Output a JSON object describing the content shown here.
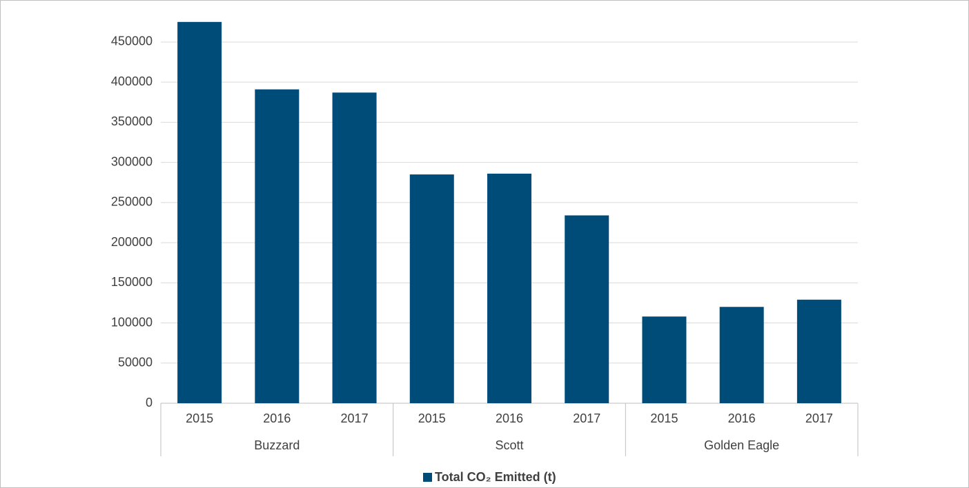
{
  "chart_data": {
    "type": "bar",
    "categories": [
      "2015",
      "2016",
      "2017",
      "2015",
      "2016",
      "2017",
      "2015",
      "2016",
      "2017"
    ],
    "groups": [
      "Buzzard",
      "Scott",
      "Golden Eagle"
    ],
    "series": [
      {
        "name": "Total CO₂ Emitted (t)",
        "color": "#004c79",
        "values": [
          475000,
          391000,
          387000,
          285000,
          286000,
          234000,
          108000,
          120000,
          129000
        ]
      }
    ],
    "ylim": [
      0,
      480000
    ],
    "yticks": [
      0,
      50000,
      100000,
      150000,
      200000,
      250000,
      300000,
      350000,
      400000,
      450000
    ],
    "grid": true,
    "legend": "bottom"
  }
}
